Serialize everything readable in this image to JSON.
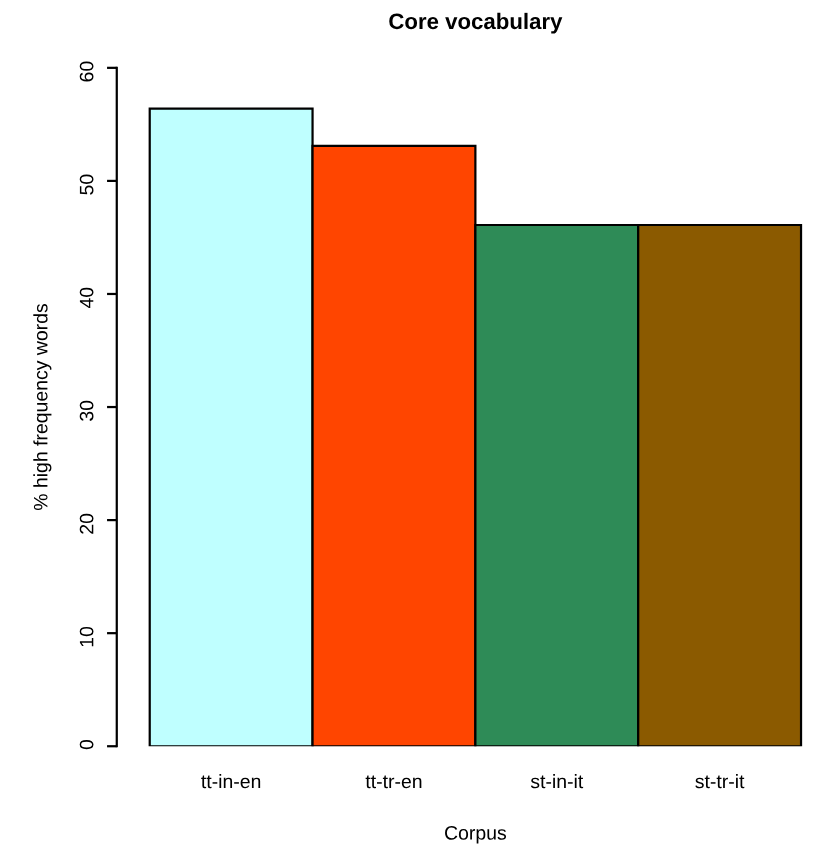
{
  "chart_data": {
    "type": "bar",
    "title": "Core vocabulary",
    "xlabel": "Corpus",
    "ylabel": "% high frequency words",
    "categories": [
      "tt-in-en",
      "tt-tr-en",
      "st-in-it",
      "st-tr-it"
    ],
    "values": [
      56.4,
      53.1,
      46.1,
      46.1
    ],
    "colors": [
      "#bfffff",
      "#ff4500",
      "#2e8b57",
      "#8b5a00"
    ],
    "ylim": [
      0,
      60
    ],
    "yticks": [
      0,
      10,
      20,
      30,
      40,
      50,
      60
    ],
    "grid": false
  }
}
